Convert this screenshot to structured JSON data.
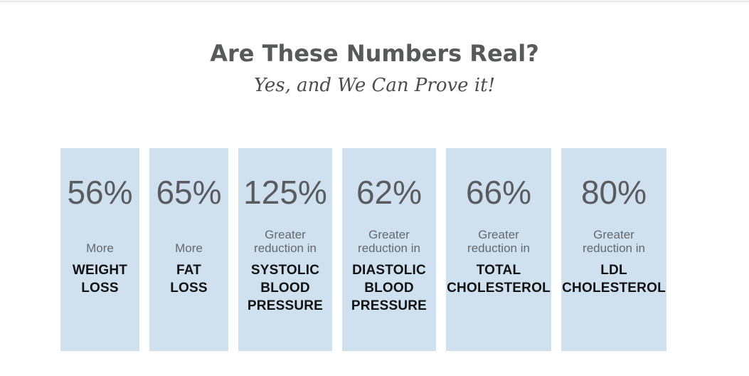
{
  "header": {
    "title": "Are These Numbers Real?",
    "subtitle": "Yes, and We Can Prove it!"
  },
  "colors": {
    "card_background": "#cfe1ef",
    "title_text": "#58595b",
    "percent_text": "#5a5b5e",
    "label_text": "#66686b",
    "category_text": "#121212",
    "page_background": "#ffffff"
  },
  "cards": [
    {
      "value": "56%",
      "label": [
        "More"
      ],
      "category": [
        "WEIGHT",
        "LOSS"
      ]
    },
    {
      "value": "65%",
      "label": [
        "More"
      ],
      "category": [
        "FAT",
        "LOSS"
      ]
    },
    {
      "value": "125%",
      "label": [
        "Greater",
        "reduction in"
      ],
      "category": [
        "SYSTOLIC",
        "BLOOD",
        "PRESSURE"
      ]
    },
    {
      "value": "62%",
      "label": [
        "Greater",
        "reduction in"
      ],
      "category": [
        "DIASTOLIC",
        "BLOOD",
        "PRESSURE"
      ]
    },
    {
      "value": "66%",
      "label": [
        "Greater",
        "reduction in"
      ],
      "category": [
        "TOTAL",
        "CHOLESTEROL"
      ]
    },
    {
      "value": "80%",
      "label": [
        "Greater",
        "reduction in"
      ],
      "category": [
        "LDL",
        "CHOLESTEROL"
      ]
    }
  ]
}
